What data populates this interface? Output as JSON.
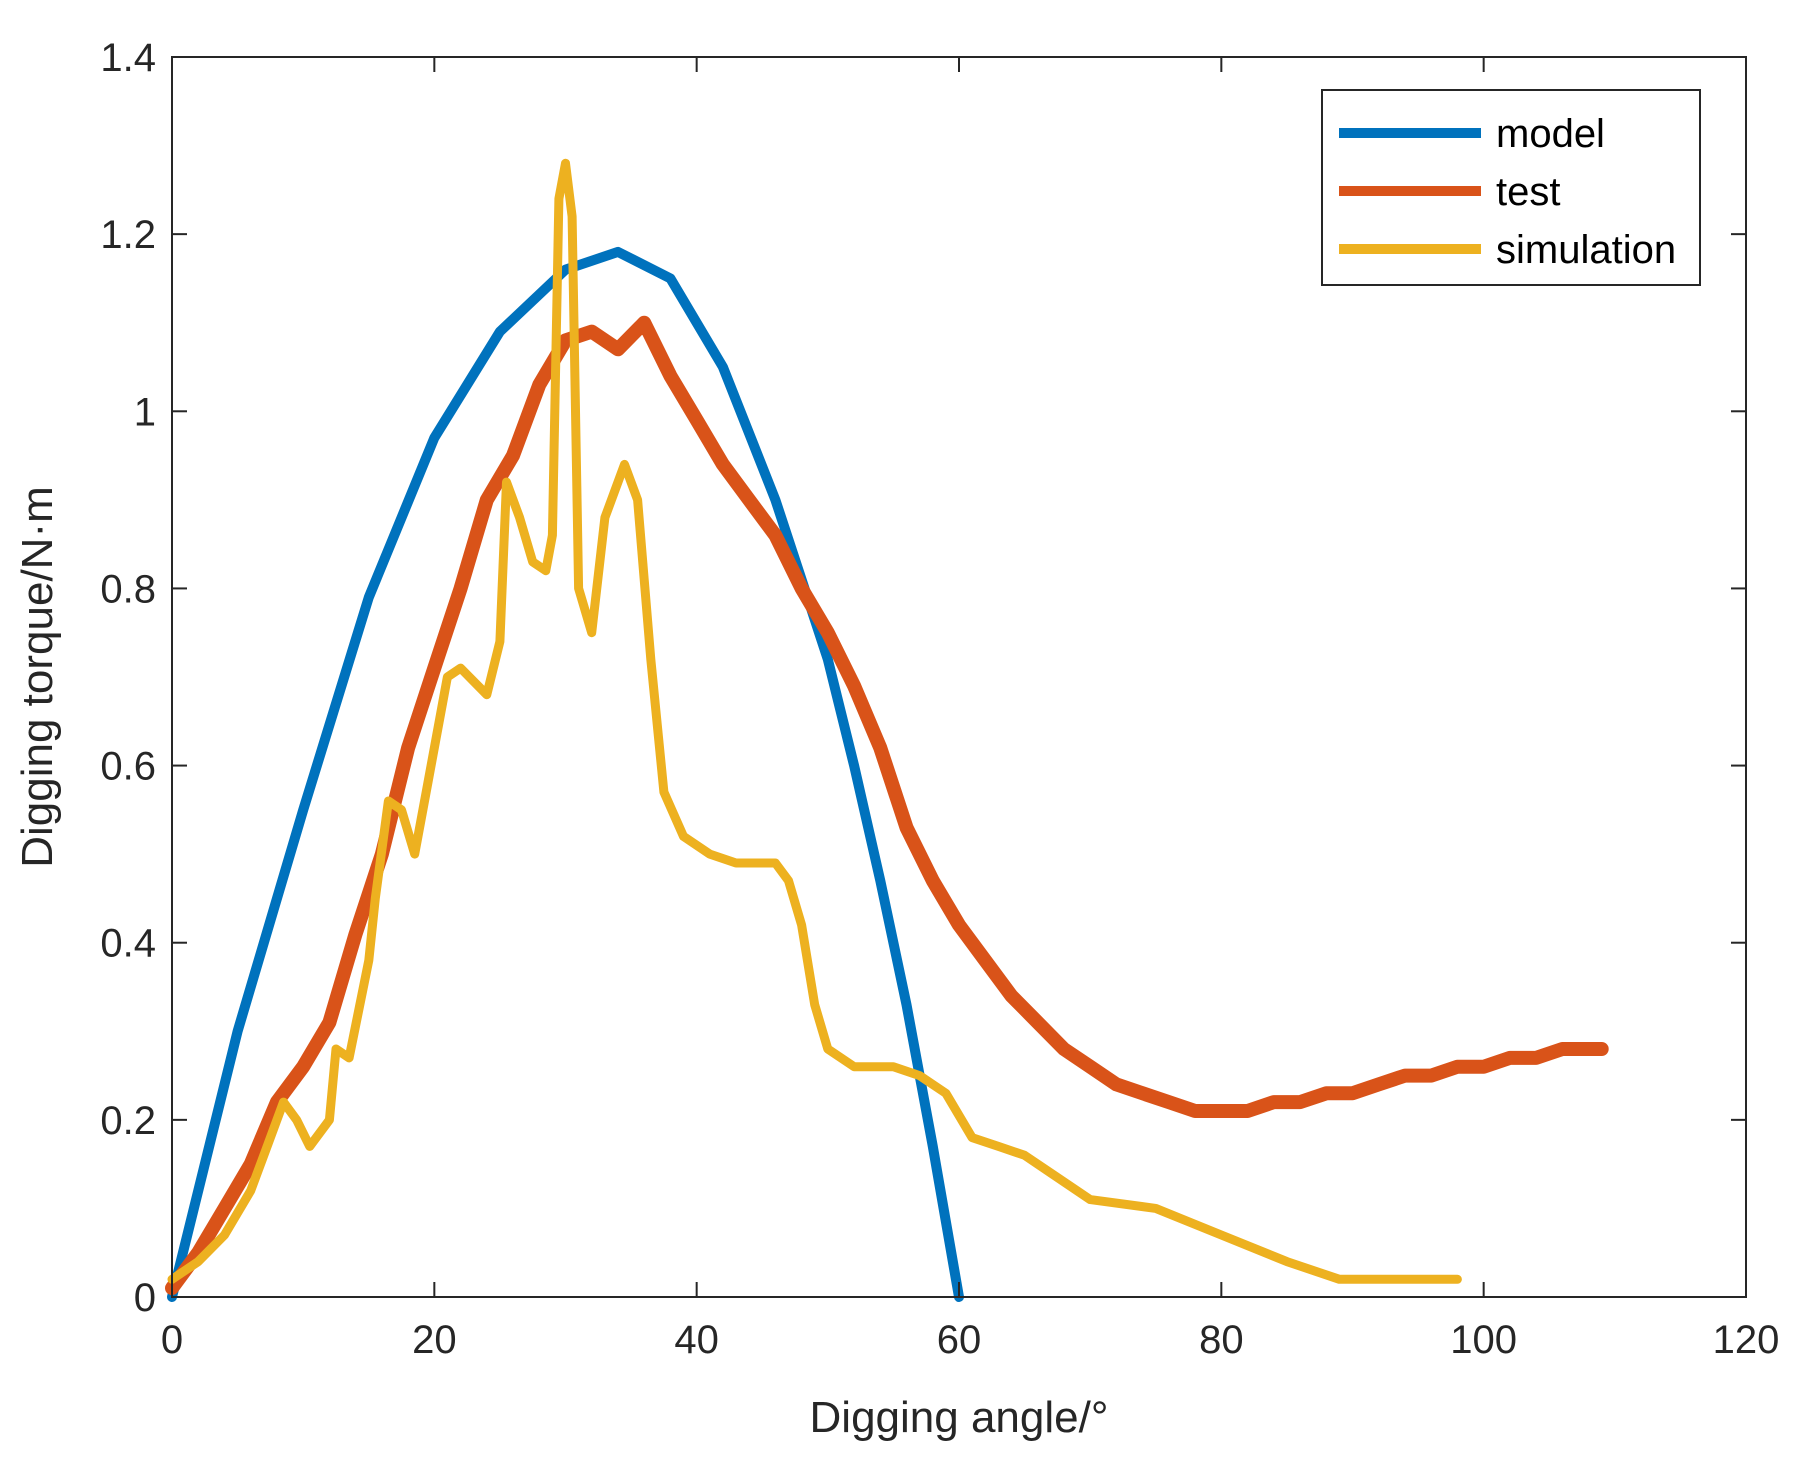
{
  "chart_data": {
    "type": "line",
    "title": "",
    "xlabel": "Digging angle/°",
    "ylabel": "Digging torque/N·m",
    "xlim": [
      0,
      120
    ],
    "ylim": [
      0,
      1.4
    ],
    "xticks": [
      0,
      20,
      40,
      60,
      80,
      100,
      120
    ],
    "yticks": [
      0,
      0.2,
      0.4,
      0.6,
      0.8,
      1,
      1.2,
      1.4
    ],
    "xtick_labels": [
      "0",
      "20",
      "40",
      "60",
      "80",
      "100",
      "120"
    ],
    "ytick_labels": [
      "0",
      "0.2",
      "0.4",
      "0.6",
      "0.8",
      "1",
      "1.2",
      "1.4"
    ],
    "grid": false,
    "legend_position": "top-right",
    "series": [
      {
        "name": "model",
        "color": "#0072BD",
        "x": [
          0,
          5,
          10,
          15,
          20,
          25,
          30,
          34,
          38,
          42,
          46,
          50,
          52,
          54,
          56,
          58,
          60
        ],
        "y": [
          0,
          0.3,
          0.55,
          0.79,
          0.97,
          1.09,
          1.16,
          1.18,
          1.15,
          1.05,
          0.9,
          0.72,
          0.6,
          0.47,
          0.33,
          0.17,
          0
        ]
      },
      {
        "name": "test",
        "color": "#D95319",
        "x": [
          0,
          2,
          4,
          6,
          8,
          10,
          12,
          14,
          16,
          18,
          20,
          22,
          24,
          26,
          28,
          30,
          32,
          34,
          36,
          38,
          40,
          42,
          44,
          46,
          48,
          50,
          52,
          54,
          56,
          58,
          60,
          62,
          64,
          66,
          68,
          70,
          72,
          74,
          76,
          78,
          80,
          82,
          84,
          86,
          88,
          90,
          92,
          94,
          96,
          98,
          100,
          102,
          104,
          106,
          108,
          109
        ],
        "y": [
          0.01,
          0.05,
          0.1,
          0.15,
          0.22,
          0.26,
          0.31,
          0.41,
          0.5,
          0.62,
          0.71,
          0.8,
          0.9,
          0.95,
          1.03,
          1.08,
          1.09,
          1.07,
          1.1,
          1.04,
          0.99,
          0.94,
          0.9,
          0.86,
          0.8,
          0.75,
          0.69,
          0.62,
          0.53,
          0.47,
          0.42,
          0.38,
          0.34,
          0.31,
          0.28,
          0.26,
          0.24,
          0.23,
          0.22,
          0.21,
          0.21,
          0.21,
          0.22,
          0.22,
          0.23,
          0.23,
          0.24,
          0.25,
          0.25,
          0.26,
          0.26,
          0.27,
          0.27,
          0.28,
          0.28,
          0.28
        ]
      },
      {
        "name": "simulation",
        "color": "#EDB120",
        "x": [
          0,
          2,
          4,
          6,
          7.5,
          8.5,
          9.5,
          10.5,
          12,
          12.5,
          13.5,
          15,
          15.5,
          16.5,
          17.5,
          18.5,
          19.5,
          21,
          22,
          24,
          25,
          25.5,
          26.5,
          27.5,
          28.5,
          29,
          29.5,
          30,
          30.5,
          31,
          32,
          33,
          34,
          34.5,
          35.5,
          36.5,
          37.5,
          39,
          41,
          43,
          46,
          47,
          48,
          49,
          50,
          52,
          55,
          57,
          59,
          61,
          63,
          65,
          67,
          70,
          75,
          80,
          85,
          89,
          93,
          96,
          98
        ],
        "y": [
          0.02,
          0.04,
          0.07,
          0.12,
          0.18,
          0.22,
          0.2,
          0.17,
          0.2,
          0.28,
          0.27,
          0.38,
          0.45,
          0.56,
          0.55,
          0.5,
          0.58,
          0.7,
          0.71,
          0.68,
          0.74,
          0.92,
          0.88,
          0.83,
          0.82,
          0.86,
          1.24,
          1.28,
          1.22,
          0.8,
          0.75,
          0.88,
          0.92,
          0.94,
          0.9,
          0.72,
          0.57,
          0.52,
          0.5,
          0.49,
          0.49,
          0.47,
          0.42,
          0.33,
          0.28,
          0.26,
          0.26,
          0.25,
          0.23,
          0.18,
          0.17,
          0.16,
          0.14,
          0.11,
          0.1,
          0.07,
          0.04,
          0.02,
          0.02,
          0.02,
          0.02
        ]
      }
    ]
  }
}
